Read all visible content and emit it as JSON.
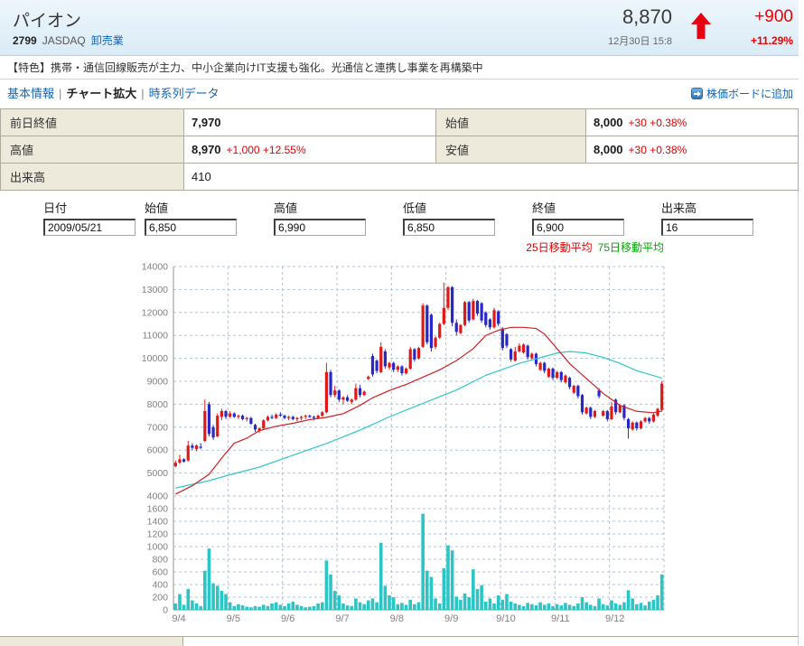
{
  "header": {
    "title": "パイオン",
    "code": "2799",
    "market": "JASDAQ",
    "industry": "卸売業",
    "price": "8,870",
    "datetime": "12月30日 15:8",
    "change": "+900",
    "change_pct": "+11.29%"
  },
  "feature": "【特色】携帯・通信回線販売が主力、中小企業向けIT支援も強化。光通信と連携し事業を再構築中",
  "nav": {
    "basic_info": "基本情報",
    "chart_zoom": "チャート拡大",
    "time_series": "時系列データ",
    "separator": "|",
    "add_to_board": "株価ボードに追加"
  },
  "summary": {
    "rows": [
      [
        {
          "label": "前日終値",
          "value": "7,970",
          "extra": ""
        },
        {
          "label": "始値",
          "value": "8,000",
          "extra": "+30 +0.38%"
        }
      ],
      [
        {
          "label": "高値",
          "value": "8,970",
          "extra": "+1,000 +12.55%"
        },
        {
          "label": "安値",
          "value": "8,000",
          "extra": "+30 +0.38%"
        }
      ],
      [
        {
          "label": "出来高",
          "value": "410",
          "extra": ""
        }
      ]
    ]
  },
  "inputs": [
    {
      "label": "日付",
      "value": "2009/05/21"
    },
    {
      "label": "始値",
      "value": "6,850"
    },
    {
      "label": "高値",
      "value": "6,990"
    },
    {
      "label": "低値",
      "value": "6,850"
    },
    {
      "label": "終値",
      "value": "6,900"
    },
    {
      "label": "出来高",
      "value": "16"
    }
  ],
  "legend": {
    "ma25_label": "25日移動平均",
    "ma75_label": "75日移動平均",
    "ma25_color": "#dd0000",
    "ma75_color": "#00a800"
  },
  "chart_data": {
    "type": "candlestick",
    "title": "",
    "x_labels": [
      "9/4",
      "9/5",
      "9/6",
      "9/7",
      "9/8",
      "9/9",
      "9/10",
      "9/11",
      "9/12"
    ],
    "candles_per_day": 13,
    "y_axis_price": {
      "min": 4000,
      "max": 14000,
      "step": 1000
    },
    "y_axis_volume": {
      "min": 0,
      "max": 1600,
      "step": 200
    },
    "colors": {
      "up": "#e01818",
      "down": "#2828c8",
      "ma25": "#d02020",
      "ma75": "#30c8c8",
      "volume": "#2cc5c5",
      "grid": "#b4c2d8",
      "axis": "#909090",
      "tick_text": "#808080"
    },
    "candles": [
      [
        5300,
        5550,
        5250,
        5450
      ],
      [
        5450,
        5800,
        5400,
        5600
      ],
      [
        5600,
        5650,
        5450,
        5500
      ],
      [
        5550,
        6400,
        5500,
        6200
      ],
      [
        6200,
        6300,
        6000,
        6100
      ],
      [
        6050,
        6250,
        5950,
        6200
      ],
      [
        6150,
        6300,
        6050,
        6100
      ],
      [
        6400,
        8200,
        6350,
        7700
      ],
      [
        8000,
        8100,
        6600,
        6700
      ],
      [
        7000,
        7100,
        6450,
        6550
      ],
      [
        6600,
        7600,
        6550,
        7500
      ],
      [
        7450,
        7800,
        7300,
        7700
      ],
      [
        7700,
        7750,
        7350,
        7450
      ],
      [
        7450,
        7700,
        7400,
        7600
      ],
      [
        7600,
        7650,
        7400,
        7450
      ],
      [
        7450,
        7550,
        7350,
        7500
      ],
      [
        7500,
        7550,
        7300,
        7350
      ],
      [
        7350,
        7450,
        7250,
        7400
      ],
      [
        7400,
        7450,
        7100,
        7150
      ],
      [
        7100,
        7150,
        6800,
        6900
      ],
      [
        6850,
        7000,
        6750,
        6950
      ],
      [
        6950,
        7350,
        6900,
        7300
      ],
      [
        7300,
        7500,
        7250,
        7450
      ],
      [
        7450,
        7550,
        7350,
        7400
      ],
      [
        7400,
        7600,
        7350,
        7550
      ],
      [
        7550,
        7650,
        7450,
        7500
      ],
      [
        7500,
        7550,
        7350,
        7400
      ],
      [
        7400,
        7500,
        7300,
        7450
      ],
      [
        7450,
        7500,
        7300,
        7350
      ],
      [
        7350,
        7450,
        7250,
        7400
      ],
      [
        7400,
        7500,
        7300,
        7450
      ],
      [
        7450,
        7550,
        7350,
        7500
      ],
      [
        7500,
        7550,
        7400,
        7450
      ],
      [
        7450,
        7500,
        7300,
        7400
      ],
      [
        7400,
        7550,
        7350,
        7500
      ],
      [
        7500,
        7700,
        7450,
        7650
      ],
      [
        7650,
        9800,
        7600,
        9400
      ],
      [
        9400,
        9500,
        8300,
        8400
      ],
      [
        8400,
        8800,
        8300,
        8600
      ],
      [
        8600,
        8650,
        8100,
        8200
      ],
      [
        8200,
        8350,
        8000,
        8300
      ],
      [
        8300,
        8400,
        8100,
        8150
      ],
      [
        8100,
        8250,
        8000,
        8200
      ],
      [
        8200,
        8900,
        8150,
        8700
      ],
      [
        8700,
        8850,
        8300,
        8400
      ],
      [
        8400,
        8600,
        8350,
        8550
      ],
      [
        9100,
        9250,
        9050,
        9200
      ],
      [
        10100,
        10200,
        9200,
        9300
      ],
      [
        9900,
        9950,
        9350,
        9450
      ],
      [
        9400,
        10700,
        9350,
        10500
      ],
      [
        10300,
        10400,
        9550,
        9650
      ],
      [
        9600,
        9850,
        9500,
        9800
      ],
      [
        9800,
        9850,
        9400,
        9500
      ],
      [
        9500,
        9700,
        9400,
        9650
      ],
      [
        9650,
        9700,
        9250,
        9350
      ],
      [
        9350,
        9600,
        9300,
        9550
      ],
      [
        9550,
        10500,
        9500,
        10400
      ],
      [
        10400,
        10450,
        9850,
        9950
      ],
      [
        10000,
        10500,
        9950,
        10450
      ],
      [
        10500,
        12400,
        10450,
        12300
      ],
      [
        12300,
        12350,
        10600,
        10700
      ],
      [
        11900,
        11950,
        10300,
        10450
      ],
      [
        10500,
        10950,
        10400,
        10900
      ],
      [
        10900,
        11550,
        10850,
        11500
      ],
      [
        11500,
        13300,
        11450,
        12200
      ],
      [
        12200,
        13150,
        12100,
        13100
      ],
      [
        13100,
        13150,
        11400,
        11550
      ],
      [
        11550,
        11700,
        11000,
        11150
      ],
      [
        11100,
        11500,
        11050,
        11450
      ],
      [
        11450,
        12500,
        11400,
        12450
      ],
      [
        12450,
        12500,
        11550,
        11650
      ],
      [
        11700,
        12600,
        11650,
        12500
      ],
      [
        12500,
        12550,
        11850,
        11950
      ],
      [
        12400,
        12450,
        11550,
        11650
      ],
      [
        12000,
        12050,
        11350,
        11450
      ],
      [
        11700,
        11750,
        11250,
        11350
      ],
      [
        11350,
        12200,
        11300,
        12100
      ],
      [
        12050,
        12100,
        11400,
        11500
      ],
      [
        11300,
        11350,
        10350,
        10450
      ],
      [
        11050,
        11100,
        10450,
        10550
      ],
      [
        10400,
        10450,
        9850,
        9950
      ],
      [
        9900,
        10500,
        9850,
        10300
      ],
      [
        10300,
        10650,
        10250,
        10550
      ],
      [
        10250,
        10650,
        10200,
        10600
      ],
      [
        10550,
        10600,
        9950,
        10050
      ],
      [
        10000,
        10250,
        9950,
        10200
      ],
      [
        10200,
        10250,
        9650,
        9750
      ],
      [
        9500,
        9850,
        9450,
        9800
      ],
      [
        9800,
        9850,
        9350,
        9450
      ],
      [
        9200,
        9600,
        9150,
        9550
      ],
      [
        9550,
        9600,
        9050,
        9150
      ],
      [
        9150,
        9450,
        9100,
        9400
      ],
      [
        9400,
        9450,
        8950,
        9050
      ],
      [
        8950,
        9300,
        8900,
        9250
      ],
      [
        9150,
        9200,
        8650,
        8750
      ],
      [
        8500,
        8850,
        8450,
        8800
      ],
      [
        8800,
        8850,
        8250,
        8350
      ],
      [
        8400,
        8450,
        7550,
        7650
      ],
      [
        7600,
        7900,
        7550,
        7850
      ],
      [
        7850,
        7900,
        7350,
        7450
      ],
      [
        7450,
        7750,
        7400,
        7700
      ],
      [
        8600,
        8700,
        8250,
        8350
      ],
      [
        7500,
        7750,
        7450,
        7700
      ],
      [
        7700,
        7750,
        7250,
        7350
      ],
      [
        7350,
        8100,
        7300,
        7900
      ],
      [
        8200,
        8250,
        7550,
        7650
      ],
      [
        7650,
        8000,
        7600,
        7950
      ],
      [
        7950,
        8000,
        7300,
        7400
      ],
      [
        7350,
        7400,
        6500,
        6950
      ],
      [
        6900,
        7250,
        6850,
        7200
      ],
      [
        7200,
        7250,
        6850,
        6950
      ],
      [
        6950,
        7300,
        6900,
        7250
      ],
      [
        7250,
        7450,
        7200,
        7400
      ],
      [
        7400,
        7450,
        7150,
        7250
      ],
      [
        7250,
        7600,
        7200,
        7550
      ],
      [
        7500,
        7850,
        7450,
        7800
      ],
      [
        7750,
        9000,
        7700,
        8900
      ]
    ],
    "volumes": [
      100,
      250,
      80,
      330,
      150,
      100,
      60,
      620,
      970,
      420,
      380,
      300,
      250,
      120,
      60,
      90,
      70,
      50,
      40,
      60,
      50,
      80,
      60,
      100,
      120,
      80,
      60,
      100,
      130,
      80,
      60,
      40,
      50,
      60,
      100,
      120,
      780,
      560,
      300,
      230,
      100,
      70,
      60,
      180,
      120,
      90,
      150,
      180,
      120,
      1060,
      380,
      230,
      200,
      90,
      110,
      80,
      160,
      90,
      120,
      1520,
      620,
      520,
      180,
      100,
      660,
      1020,
      940,
      210,
      160,
      260,
      200,
      640,
      330,
      390,
      130,
      180,
      100,
      230,
      160,
      250,
      130,
      100,
      80,
      60,
      110,
      90,
      70,
      120,
      80,
      100,
      60,
      90,
      70,
      110,
      80,
      60,
      100,
      200,
      120,
      80,
      60,
      180,
      90,
      70,
      150,
      100,
      80,
      120,
      310,
      180,
      90,
      110,
      70,
      130,
      160,
      230,
      560
    ],
    "ma25": [
      [
        0,
        4080
      ],
      [
        4,
        4450
      ],
      [
        8,
        4950
      ],
      [
        12,
        5880
      ],
      [
        14,
        6300
      ],
      [
        17,
        6520
      ],
      [
        20,
        6850
      ],
      [
        24,
        7040
      ],
      [
        28,
        7170
      ],
      [
        32,
        7330
      ],
      [
        36,
        7430
      ],
      [
        40,
        7590
      ],
      [
        44,
        7950
      ],
      [
        47,
        8280
      ],
      [
        51,
        8600
      ],
      [
        55,
        8860
      ],
      [
        59,
        9180
      ],
      [
        63,
        9500
      ],
      [
        67,
        9900
      ],
      [
        71,
        10420
      ],
      [
        74,
        11000
      ],
      [
        77,
        11220
      ],
      [
        80,
        11350
      ],
      [
        83,
        11350
      ],
      [
        86,
        11300
      ],
      [
        88,
        11060
      ],
      [
        91,
        10420
      ],
      [
        94,
        9770
      ],
      [
        98,
        9120
      ],
      [
        102,
        8470
      ],
      [
        106,
        7950
      ],
      [
        110,
        7690
      ],
      [
        114,
        7630
      ],
      [
        116,
        7700
      ]
    ],
    "ma75": [
      [
        0,
        4350
      ],
      [
        8,
        4670
      ],
      [
        13,
        4930
      ],
      [
        20,
        5260
      ],
      [
        28,
        5780
      ],
      [
        36,
        6290
      ],
      [
        44,
        6870
      ],
      [
        51,
        7450
      ],
      [
        59,
        8040
      ],
      [
        67,
        8620
      ],
      [
        74,
        9260
      ],
      [
        82,
        9780
      ],
      [
        91,
        10230
      ],
      [
        94,
        10300
      ],
      [
        98,
        10230
      ],
      [
        102,
        10040
      ],
      [
        106,
        9780
      ],
      [
        110,
        9460
      ],
      [
        116,
        9140
      ]
    ]
  }
}
